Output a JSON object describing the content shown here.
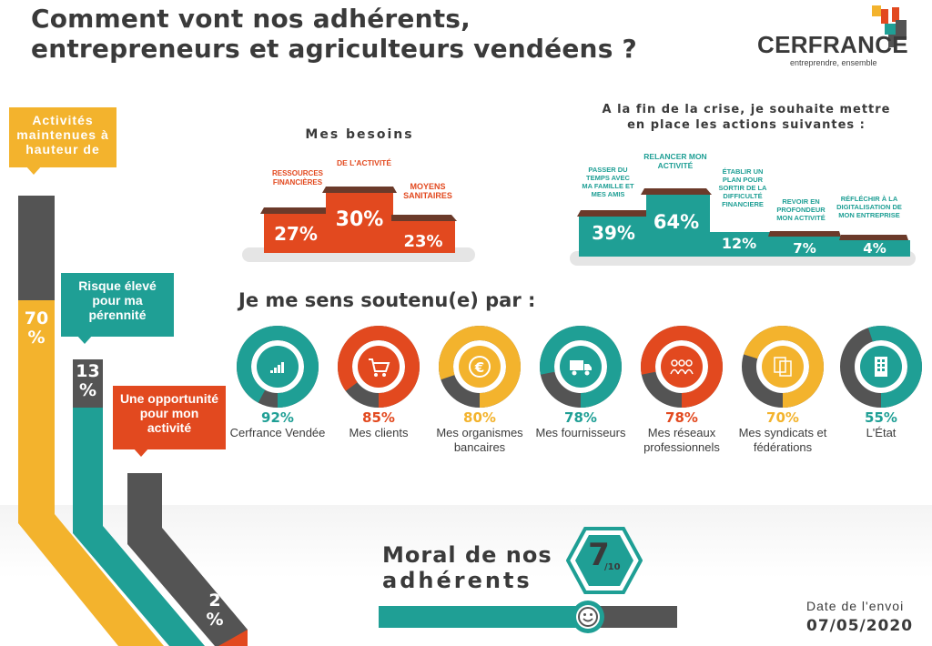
{
  "header": {
    "title_line1": "Comment vont nos adhérents,",
    "title_line2": "entrepreneurs et agriculteurs vendéens ?",
    "brand": "CERFRANCE",
    "tagline": "entreprendre, ensemble"
  },
  "colors": {
    "orange": "#e2491f",
    "teal": "#1f9f95",
    "yellow": "#f3b32d",
    "gray": "#545454",
    "brown": "#6b3a2a",
    "light_gray": "#e5e5e5"
  },
  "activity": {
    "callouts": [
      {
        "label": "Activités maintenues à hauteur de",
        "value": "70 %",
        "color": "#f3b32d"
      },
      {
        "label": "Risque élevé pour ma pérennité",
        "value": "13 %",
        "color": "#1f9f95"
      },
      {
        "label": "Une opportunité pour mon activité",
        "value": "2 %",
        "color": "#e2491f"
      }
    ]
  },
  "needs": {
    "title": "Mes besoins",
    "items": [
      {
        "label": "RESSOURCES FINANCIÈRES",
        "value": "27%"
      },
      {
        "label": "DE L'ACTIVITÉ",
        "value": "30%"
      },
      {
        "label": "MOYENS SANITAIRES",
        "value": "23%"
      }
    ]
  },
  "actions": {
    "title_line1": "A la fin de la crise, je souhaite mettre",
    "title_line2": "en place les actions suivantes :",
    "items": [
      {
        "label": "PASSER DU TEMPS AVEC MA FAMILLE ET MES AMIS",
        "value": "39%"
      },
      {
        "label": "RELANCER MON ACTIVITÉ",
        "value": "64%"
      },
      {
        "label": "ÉTABLIR UN PLAN POUR SORTIR DE LA DIFFICULTÉ FINANCIERE",
        "value": "12%"
      },
      {
        "label": "REVOIR EN PROFONDEUR MON ACTIVITÉ",
        "value": "7%"
      },
      {
        "label": "RÉFLÉCHIR À LA DIGITALISATION DE MON ENTREPRISE",
        "value": "4%"
      }
    ]
  },
  "support": {
    "title": "Je me sens soutenu(e) par :",
    "items": [
      {
        "pct": "92%",
        "label": "Cerfrance Vendée",
        "icon": "chart-bars-icon",
        "color": "#1f9f95"
      },
      {
        "pct": "85%",
        "label": "Mes clients",
        "icon": "cart-icon",
        "color": "#e2491f"
      },
      {
        "pct": "80%",
        "label": "Mes organismes bancaires",
        "icon": "euro-icon",
        "color": "#f3b32d"
      },
      {
        "pct": "78%",
        "label": "Mes fournisseurs",
        "icon": "truck-icon",
        "color": "#1f9f95"
      },
      {
        "pct": "78%",
        "label": "Mes réseaux professionnels",
        "icon": "people-icon",
        "color": "#e2491f"
      },
      {
        "pct": "70%",
        "label": "Mes syndicats et fédérations",
        "icon": "documents-icon",
        "color": "#f3b32d"
      },
      {
        "pct": "55%",
        "label": "L'État",
        "icon": "building-icon",
        "color": "#1f9f95"
      }
    ]
  },
  "moral": {
    "line1": "Moral de nos",
    "line2": "adhérents",
    "score": "7",
    "out_of": "/10",
    "fraction": 0.7,
    "icon": "smiley-icon"
  },
  "date": {
    "label": "Date de l'envoi",
    "value": "07/05/2020"
  },
  "chart_data": [
    {
      "type": "bar",
      "title": "Mes besoins",
      "categories": [
        "RESSOURCES FINANCIÈRES",
        "DE L'ACTIVITÉ",
        "MOYENS SANITAIRES"
      ],
      "values": [
        27,
        30,
        23
      ]
    },
    {
      "type": "bar",
      "title": "A la fin de la crise, je souhaite mettre en place les actions suivantes :",
      "categories": [
        "PASSER DU TEMPS AVEC MA FAMILLE ET MES AMIS",
        "RELANCER MON ACTIVITÉ",
        "ÉTABLIR UN PLAN POUR SORTIR DE LA DIFFICULTÉ FINANCIERE",
        "REVOIR EN PROFONDEUR MON ACTIVITÉ",
        "RÉFLÉCHIR À LA DIGITALISATION DE MON ENTREPRISE"
      ],
      "values": [
        39,
        64,
        12,
        7,
        4
      ]
    },
    {
      "type": "pie",
      "title": "Je me sens soutenu(e) par :",
      "categories": [
        "Cerfrance Vendée",
        "Mes clients",
        "Mes organismes bancaires",
        "Mes fournisseurs",
        "Mes réseaux professionnels",
        "Mes syndicats et fédérations",
        "L'État"
      ],
      "values": [
        92,
        85,
        80,
        78,
        78,
        70,
        55
      ]
    },
    {
      "type": "bar",
      "categories": [
        "Activités maintenues à hauteur de",
        "Risque élevé pour ma pérennité",
        "Une opportunité pour mon activité"
      ],
      "values": [
        70,
        13,
        2
      ]
    }
  ]
}
